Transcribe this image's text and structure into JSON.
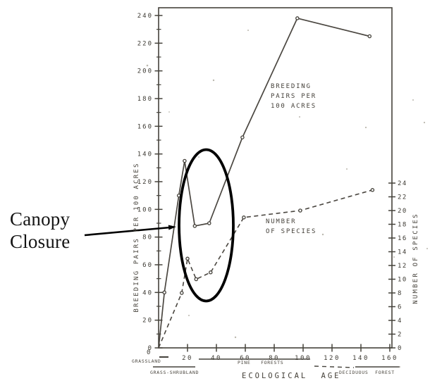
{
  "annotation": {
    "label": "Canopy\nClosure"
  },
  "chart_data": {
    "type": "line",
    "title": "",
    "xlabel": "ECOLOGICAL AGE",
    "x_axis": {
      "min": 0,
      "max": 165,
      "ticks": [
        0,
        20,
        40,
        60,
        80,
        100,
        120,
        140,
        160
      ]
    },
    "left_axis": {
      "label": "BREEDING PAIRS PER 100 ACRES",
      "min": 0,
      "max": 240,
      "ticks": [
        0,
        20,
        40,
        60,
        80,
        100,
        120,
        140,
        160,
        180,
        200,
        220,
        240
      ],
      "minor_step": 10
    },
    "right_axis": {
      "label": "NUMBER OF SPECIES",
      "min": 0,
      "max": 24,
      "ticks": [
        0,
        2,
        4,
        6,
        8,
        10,
        12,
        14,
        16,
        18,
        20,
        22,
        24
      ]
    },
    "series": [
      {
        "name": "BREEDING\nPAIRS PER\n100 ACRES",
        "axis": "left",
        "style": "solid",
        "points": [
          [
            0,
            0
          ],
          [
            4,
            40
          ],
          [
            14,
            110
          ],
          [
            18,
            135
          ],
          [
            25,
            88
          ],
          [
            35,
            90
          ],
          [
            58,
            152
          ],
          [
            96,
            238
          ],
          [
            146,
            225
          ]
        ]
      },
      {
        "name": "NUMBER\nOF SPECIES",
        "axis": "right",
        "style": "dashed",
        "points": [
          [
            0,
            0
          ],
          [
            16,
            8
          ],
          [
            20,
            13
          ],
          [
            26,
            10
          ],
          [
            36,
            11
          ],
          [
            59,
            19
          ],
          [
            98,
            20
          ],
          [
            148,
            23
          ]
        ]
      }
    ],
    "stages": [
      {
        "id": "grassland",
        "label": "GRASSLAND",
        "marker": "solid"
      },
      {
        "id": "grass-shrubland",
        "label": "GRASS-SHRUBLAND",
        "marker": "solid"
      },
      {
        "id": "pine-forests",
        "label": "PINE FORESTS",
        "marker": "solid"
      },
      {
        "id": "deciduous-forest",
        "label": "DECIDUOUS FOREST",
        "marker": "dashed-solid"
      }
    ],
    "legend_position": "inline",
    "grid": false
  }
}
